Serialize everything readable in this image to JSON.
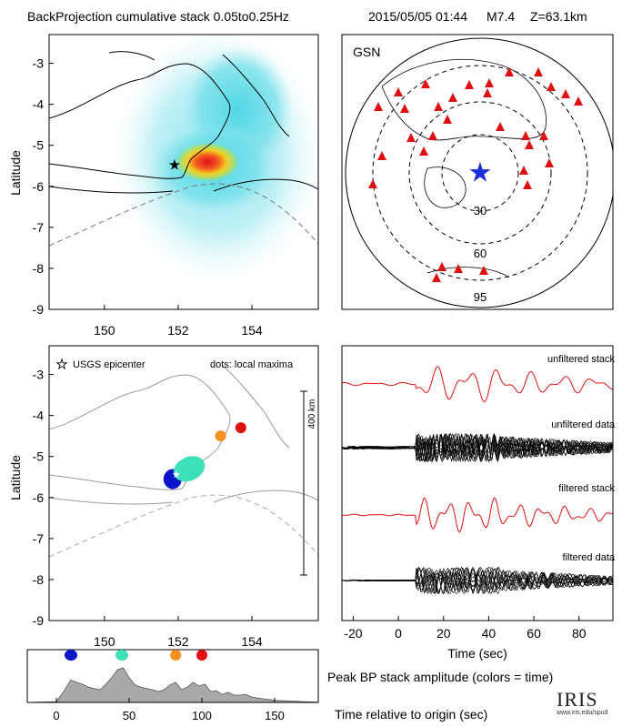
{
  "header": {
    "title": "BackProjection cumulative stack 0.05to0.25Hz",
    "event": "2015/05/05 01:44",
    "magnitude": "M7.4",
    "depth": "Z=63.1km"
  },
  "map_top": {
    "ylabel": "Latitude",
    "yticks": [
      "-3",
      "-4",
      "-5",
      "-6",
      "-7",
      "-8",
      "-9"
    ],
    "xticks": [
      "150",
      "152",
      "154"
    ]
  },
  "globe": {
    "network": "GSN",
    "rings": [
      "30",
      "60",
      "95"
    ]
  },
  "map_bottom": {
    "ylabel": "Latitude",
    "yticks": [
      "-3",
      "-4",
      "-5",
      "-6",
      "-7",
      "-8",
      "-9"
    ],
    "xticks": [
      "150",
      "152",
      "154"
    ],
    "legend_epicenter": "USGS epicenter",
    "legend_dots": "dots: local maxima",
    "scale_label": "400 km"
  },
  "traces": {
    "labels": [
      "unfiltered stack",
      "unfiltered data",
      "filtered stack",
      "filtered data"
    ],
    "xticks": [
      "-20",
      "0",
      "20",
      "40",
      "60",
      "80"
    ],
    "xlabel": "Time (sec)"
  },
  "amplitude": {
    "xticks": [
      "0",
      "50",
      "100",
      "150"
    ],
    "caption": "Peak BP stack amplitude (colors = time)",
    "xlabel": "Time relative to origin (sec)"
  },
  "logo": {
    "text": "IRIS",
    "url": "www.iris.edu/spud"
  },
  "chart_data": [
    {
      "type": "heatmap",
      "title": "BackProjection cumulative stack 0.05to0.25Hz",
      "ylabel": "Latitude",
      "xlim": [
        148.5,
        155.8
      ],
      "ylim": [
        -9,
        -2.3
      ],
      "epicenter": {
        "lon": 151.9,
        "lat": -5.5
      },
      "peak": {
        "lon": 152.5,
        "lat": -5.2
      }
    },
    {
      "type": "scatter",
      "title": "dots: local maxima",
      "ylabel": "Latitude",
      "xlim": [
        148.5,
        155.8
      ],
      "ylim": [
        -9,
        -2.3
      ],
      "points": [
        {
          "lon": 151.85,
          "lat": -5.55,
          "t": 10,
          "color": "#0a14c8"
        },
        {
          "lon": 152.3,
          "lat": -5.3,
          "t": 45,
          "color": "#3de0b8"
        },
        {
          "lon": 153.15,
          "lat": -4.5,
          "t": 82,
          "color": "#f7901e"
        },
        {
          "lon": 153.7,
          "lat": -4.3,
          "t": 100,
          "color": "#e01010"
        }
      ]
    },
    {
      "type": "line",
      "xlabel": "Time (sec)",
      "xlim": [
        -25,
        95
      ],
      "series": [
        {
          "name": "unfiltered stack",
          "color": "#e01010"
        },
        {
          "name": "unfiltered data",
          "color": "#000000"
        },
        {
          "name": "filtered stack",
          "color": "#e01010"
        },
        {
          "name": "filtered data",
          "color": "#000000"
        }
      ]
    },
    {
      "type": "area",
      "title": "Peak BP stack amplitude (colors = time)",
      "xlabel": "Time relative to origin (sec)",
      "xlim": [
        -20,
        180
      ],
      "x": [
        -20,
        0,
        5,
        10,
        14,
        18,
        22,
        26,
        30,
        34,
        38,
        42,
        46,
        50,
        54,
        58,
        62,
        66,
        70,
        74,
        78,
        82,
        86,
        90,
        94,
        98,
        102,
        106,
        110,
        114,
        118,
        122,
        126,
        130,
        134,
        138,
        142,
        146,
        150,
        160,
        170,
        180
      ],
      "y": [
        0,
        0.02,
        0.3,
        0.62,
        0.55,
        0.5,
        0.42,
        0.38,
        0.35,
        0.5,
        0.68,
        0.9,
        0.95,
        0.68,
        0.48,
        0.42,
        0.38,
        0.35,
        0.3,
        0.35,
        0.48,
        0.55,
        0.35,
        0.42,
        0.55,
        0.45,
        0.5,
        0.3,
        0.32,
        0.22,
        0.28,
        0.2,
        0.2,
        0.22,
        0.15,
        0.12,
        0.1,
        0.08,
        0.06,
        0.04,
        0.02,
        0.01
      ],
      "markers": [
        {
          "t": 10,
          "color": "#0a14c8"
        },
        {
          "t": 45,
          "color": "#3de0b8"
        },
        {
          "t": 82,
          "color": "#f7901e"
        },
        {
          "t": 100,
          "color": "#e01010"
        }
      ]
    }
  ]
}
